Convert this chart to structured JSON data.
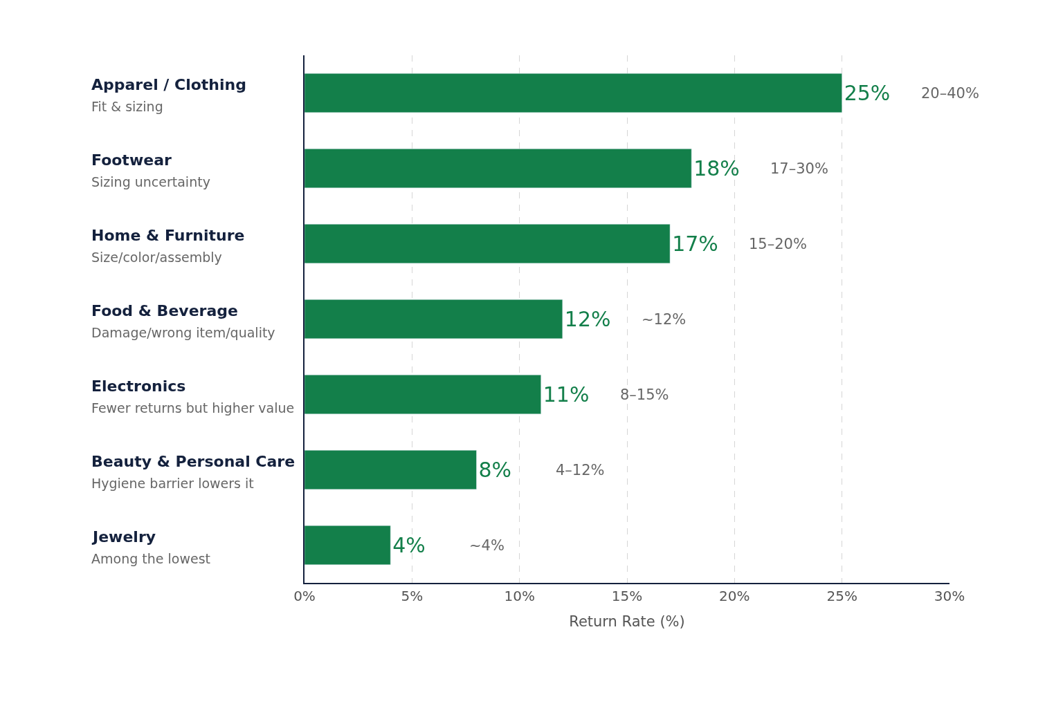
{
  "chart_data": {
    "type": "bar",
    "orientation": "horizontal",
    "xlabel": "Return Rate (%)",
    "categories": [
      "Apparel / Clothing\nFit & sizing",
      "Footwear\nSizing uncertainty",
      "Home & Furniture\nSize/color/assembly",
      "Food & Beverage\nDamage/wrong item/quality",
      "Electronics\nFewer returns but higher value",
      "Beauty & Personal Care\nHygiene barrier lowers it",
      "Jewelry\nAmong the lowest"
    ],
    "values": [
      25,
      18,
      17,
      12,
      11,
      8,
      4
    ],
    "value_labels": [
      "25%",
      "18%",
      "17%",
      "12%",
      "11%",
      "8%",
      "4%"
    ],
    "color": "#137f4a",
    "xlim": [
      0,
      30
    ],
    "xticks": [
      {
        "value": 0,
        "label": "0%"
      },
      {
        "value": 5,
        "label": "5%"
      },
      {
        "value": 10,
        "label": "10%"
      },
      {
        "value": 15,
        "label": "15%"
      },
      {
        "value": 20,
        "label": "20%"
      },
      {
        "value": 25,
        "label": "25%"
      },
      {
        "value": 30,
        "label": "30%"
      }
    ],
    "grid": "x",
    "annotations": [
      "20–40%",
      "17–30%",
      "15–20%",
      "~12%",
      "8–15%",
      "4–12%",
      "~4%"
    ]
  }
}
